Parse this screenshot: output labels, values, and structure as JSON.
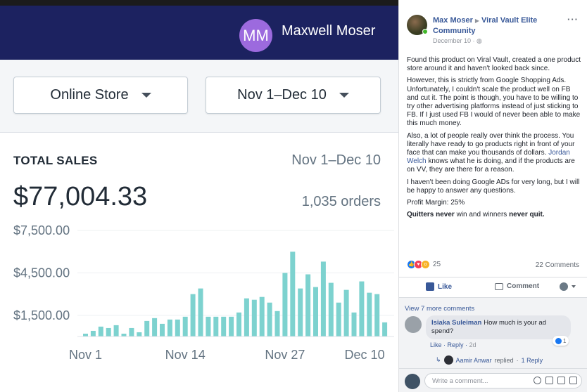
{
  "shopify": {
    "user": {
      "initials": "MM",
      "name": "Maxwell Moser"
    },
    "filters": {
      "store": "Online Store",
      "range": "Nov 1–Dec 10"
    },
    "total_sales": {
      "label": "TOTAL SALES",
      "range": "Nov 1–Dec 10",
      "amount": "$77,004.33",
      "orders": "1,035 orders"
    }
  },
  "chart_data": {
    "type": "bar",
    "ylim": [
      0,
      9000
    ],
    "y_ticks": [
      {
        "value": 1500,
        "label": "$1,500.00"
      },
      {
        "value": 4500,
        "label": "$4,500.00"
      },
      {
        "value": 7500,
        "label": "$7,500.00"
      }
    ],
    "x_ticks": [
      {
        "index": 0,
        "label": "Nov 1"
      },
      {
        "index": 13,
        "label": "Nov 14"
      },
      {
        "index": 26,
        "label": "Nov 27"
      },
      {
        "index": 39,
        "label": "Dec 10"
      }
    ],
    "values": [
      200,
      400,
      700,
      600,
      800,
      200,
      600,
      300,
      1100,
      1300,
      900,
      1200,
      1200,
      1400,
      3000,
      3400,
      1400,
      1400,
      1400,
      1400,
      1700,
      2700,
      2600,
      2800,
      2400,
      1800,
      4500,
      6000,
      3400,
      4400,
      3500,
      5300,
      3800,
      2400,
      3300,
      1700,
      3900,
      3100,
      3000,
      1000
    ],
    "bar_color": "#7dd2cf"
  },
  "facebook": {
    "author": "Max Moser",
    "group": "Viral Vault Elite Community",
    "date": "December 10 · ",
    "more": "···",
    "body": {
      "p1": "Found this product on Viral Vault, created a one product store around it and haven't looked back since.",
      "p2": "However, this is strictly from Google Shopping Ads. Unfortunately, I couldn't scale the product well on FB and cut it. The point is though, you have to be willing to try other advertising platforms instead of just sticking to FB. If I just used FB I would of never been able to make this much money.",
      "p3a": "Also, a lot of people really over think the process. You literally have ready to go products right in front of your face that can make you thousands of dollars. ",
      "p3_link": "Jordan Welch",
      "p3b": " knows what he is doing, and if the products are on VV, they are there for a reason.",
      "p4": "I haven't been doing Google ADs for very long, but I will be happy to answer any questions.",
      "p5": "Profit Margin: 25%",
      "p6a": "Quitters never",
      "p6b": " win and winners ",
      "p6c": "never quit."
    },
    "reactions": {
      "count": "25",
      "comments": "22 Comments"
    },
    "actions": {
      "like": "Like",
      "comment": "Comment"
    },
    "view_more": "View 7 more comments",
    "comment": {
      "name": "Isiaka Suleiman",
      "text": "How much is your ad spend?",
      "like": "Like",
      "reply": "Reply",
      "time": "2d",
      "reactions": "1",
      "replier": "Aamir Anwar",
      "replied": "replied",
      "reply_count": "1 Reply"
    },
    "write_placeholder": "Write a comment..."
  }
}
